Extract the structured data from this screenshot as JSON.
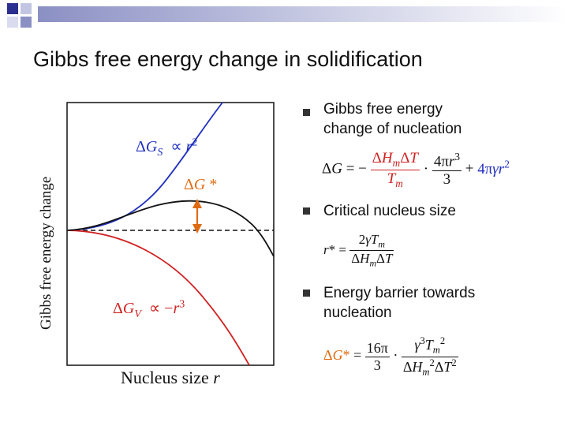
{
  "title": "Gibbs free energy change in solidification",
  "diagram": {
    "ylabel": "Gibbs free energy change",
    "xlabel": "Nucleus size r",
    "labels": {
      "gs": "ΔG_S ∝ r²",
      "gv": "ΔG_V ∝ −r³",
      "gstar": "ΔG *"
    }
  },
  "bullets": [
    {
      "text": "Gibbs free energy change of nucleation",
      "equation": "ΔG = −(ΔH_m ΔT / T_m)·(4πr³/3) + 4πγr²"
    },
    {
      "text": "Critical nucleus size",
      "equation": "r* = 2γT_m / (ΔH_m ΔT)"
    },
    {
      "text": "Energy barrier towards nucleation",
      "equation": "ΔG* = (16π/3)·(γ³T_m² / (ΔH_m² ΔT²))"
    }
  ],
  "colors": {
    "blue": "#1f2fbf",
    "red": "#d02020",
    "orange": "#e06a10",
    "curve": "#111111"
  }
}
